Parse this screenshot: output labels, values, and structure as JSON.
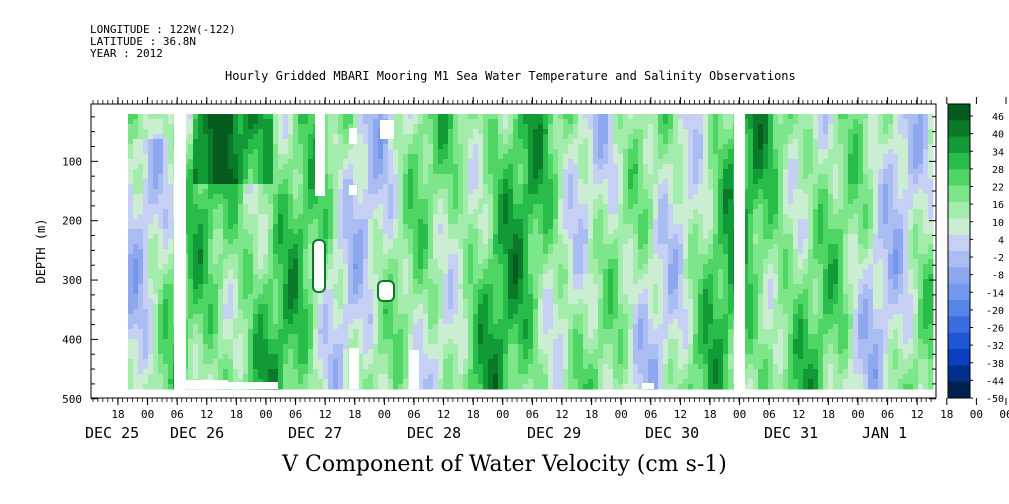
{
  "meta": {
    "longitude": "LONGITUDE : 122W(-122)",
    "latitude": "LATITUDE : 36.8N",
    "year": "YEAR : 2012"
  },
  "chart_data": {
    "type": "heatmap",
    "title": "Hourly Gridded MBARI Mooring M1 Sea Water Temperature and Salinity Observations",
    "xlabel": "V Component of Water Velocity (cm s-1)",
    "ylabel": "DEPTH (m)",
    "ylim": [
      500,
      0
    ],
    "y_ticks": [
      100,
      200,
      300,
      400,
      500
    ],
    "x_hour_labels": [
      "18",
      "00",
      "06",
      "12",
      "18",
      "00",
      "06",
      "12",
      "18",
      "00",
      "06",
      "12",
      "18",
      "00",
      "06",
      "12",
      "18",
      "00",
      "06",
      "12",
      "18",
      "00",
      "06",
      "12",
      "18",
      "00",
      "06",
      "12",
      "18",
      "00",
      "06",
      "12"
    ],
    "x_date_labels": [
      "DEC 25",
      "DEC 26",
      "DEC 27",
      "DEC 28",
      "DEC 29",
      "DEC 30",
      "DEC 31",
      "JAN  1"
    ],
    "colorbar_levels": [
      46,
      40,
      34,
      28,
      22,
      16,
      10,
      4,
      -2,
      -8,
      -14,
      -20,
      -26,
      -32,
      -38,
      -44,
      -50
    ],
    "colorbar_labels": [
      "46",
      "40",
      "34",
      "28",
      "22",
      "16",
      "10",
      "4",
      "-2",
      "-8",
      "-14",
      "-20",
      "-26",
      "-32",
      "-38",
      "-44",
      "-50"
    ],
    "colormap": [
      "#00204d",
      "#00308a",
      "#0a3fbf",
      "#1f56d6",
      "#3a6ee0",
      "#5585e8",
      "#7397ec",
      "#8ea8ef",
      "#a9bdf2",
      "#c6d0f5",
      "#cbeed2",
      "#a4ecac",
      "#7ee68a",
      "#4fd564",
      "#28bd4a",
      "#129a36",
      "#0a7a28",
      "#065c1e"
    ]
  }
}
